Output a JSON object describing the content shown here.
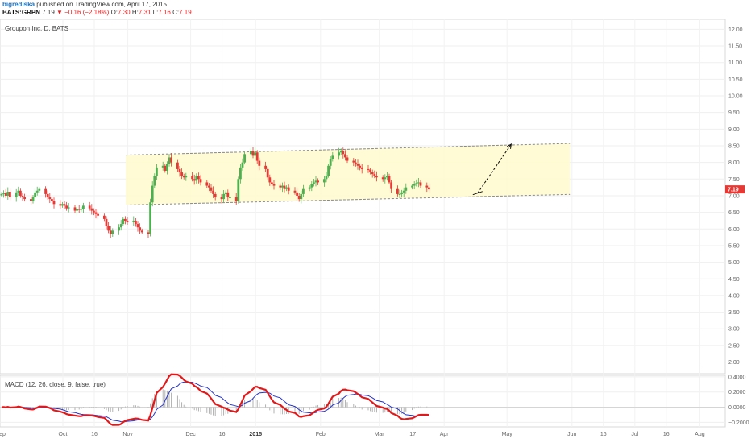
{
  "header": {
    "author": "bigrediska",
    "published": "published on TradingView.com, April 17, 2015",
    "symbol": "BATS:GRPN",
    "last": "7.19",
    "change_arrow": "▼",
    "change": "−0.16 (−2.18%)",
    "open_label": "O:",
    "open": "7.30",
    "high_label": "H:",
    "high": "7.31",
    "low_label": "L:",
    "low": "7.16",
    "close_label": "C:",
    "close": "7.19"
  },
  "colors": {
    "up": "#4caf50",
    "down": "#e53935",
    "channel_fill": "#fffacd",
    "macd": "#e0191b",
    "signal": "#2432c6",
    "price_tag": "#e53935"
  },
  "chart_data": [
    {
      "type": "candlestick",
      "title": "Groupon Inc, D, BATS",
      "price_tag": "7.19",
      "x_ticks": [
        "ep",
        "Oct",
        "16",
        "Nov",
        "Dec",
        "16",
        "2015",
        "Feb",
        "Mar",
        "17",
        "Apr",
        "May",
        "Jun",
        "16",
        "Jul",
        "16",
        "Aug"
      ],
      "y_ticks": [
        "12.00",
        "11.50",
        "11.00",
        "10.50",
        "10.00",
        "9.50",
        "9.00",
        "8.50",
        "8.00",
        "7.50",
        "7.00",
        "6.50",
        "6.00",
        "5.50",
        "5.00",
        "4.50",
        "4.00",
        "3.50",
        "3.00",
        "2.50",
        "2.00"
      ],
      "ylim": [
        1.65,
        12.3
      ],
      "grid": true,
      "channel": {
        "start_date": "2014-10-31",
        "end_date": "2015-05-31",
        "upper": [
          8.22,
          8.57
        ],
        "lower": [
          6.72,
          7.04
        ]
      },
      "projection": {
        "from": [
          "2015-04-17",
          7.08
        ],
        "to": [
          "2015-05-03",
          8.55
        ]
      },
      "closes_daily_from_2014-09-01": [
        7.05,
        7.08,
        7.0,
        7.12,
        6.95,
        7.1,
        7.15,
        7.0,
        6.95,
        6.9,
        6.85,
        6.95,
        7.1,
        7.15,
        7.2,
        7.05,
        6.95,
        6.9,
        6.85,
        6.75,
        6.7,
        6.75,
        6.7,
        6.62,
        6.65,
        6.55,
        6.6,
        6.58,
        6.6,
        6.7,
        6.62,
        6.55,
        6.5,
        6.45,
        6.4,
        6.3,
        6.1,
        5.95,
        5.85,
        5.95,
        6.05,
        6.15,
        6.3,
        6.25,
        6.2,
        6.25,
        6.15,
        6.05,
        5.95,
        5.9,
        5.85,
        6.8,
        7.3,
        7.6,
        7.85,
        7.9,
        7.75,
        7.95,
        8.15,
        8.0,
        7.8,
        7.7,
        7.6,
        7.55,
        7.6,
        7.5,
        7.45,
        7.6,
        7.5,
        7.4,
        7.3,
        7.25,
        7.15,
        7.05,
        6.95,
        6.9,
        7.05,
        7.1,
        6.95,
        6.95,
        6.85,
        7.5,
        7.85,
        8.0,
        8.25,
        8.35,
        8.2,
        8.3,
        8.05,
        7.9,
        7.8,
        7.55,
        7.4,
        7.35,
        7.3,
        7.25,
        7.3,
        7.2,
        7.25,
        7.15,
        7.1,
        7.0,
        6.9,
        7.05,
        7.2,
        7.25,
        7.35,
        7.4,
        7.45,
        7.4,
        7.5,
        7.6,
        7.9,
        8.1,
        8.2,
        8.3,
        8.35,
        8.25,
        8.15,
        8.05,
        8.0,
        7.95,
        7.9,
        7.85,
        7.8,
        7.78,
        7.7,
        7.65,
        7.6,
        7.55,
        7.5,
        7.55,
        7.6,
        7.4,
        7.2,
        7.05,
        7.05,
        7.1,
        7.15,
        7.25,
        7.3,
        7.35,
        7.38,
        7.4,
        7.3,
        7.25,
        7.19
      ]
    },
    {
      "type": "line",
      "title": "MACD (12, 26, close, 9, false, true)",
      "y_ticks": [
        "0.4000",
        "0.2000",
        "0.0000",
        "−0.2000"
      ],
      "ylim": [
        -0.26,
        0.42
      ],
      "series": [
        {
          "name": "",
          "color": "#e0191b",
          "style": "line"
        },
        {
          "name": "",
          "color": "#2432c6",
          "style": "line"
        },
        {
          "name": "",
          "color": "#999999",
          "style": "histogram"
        }
      ]
    }
  ]
}
